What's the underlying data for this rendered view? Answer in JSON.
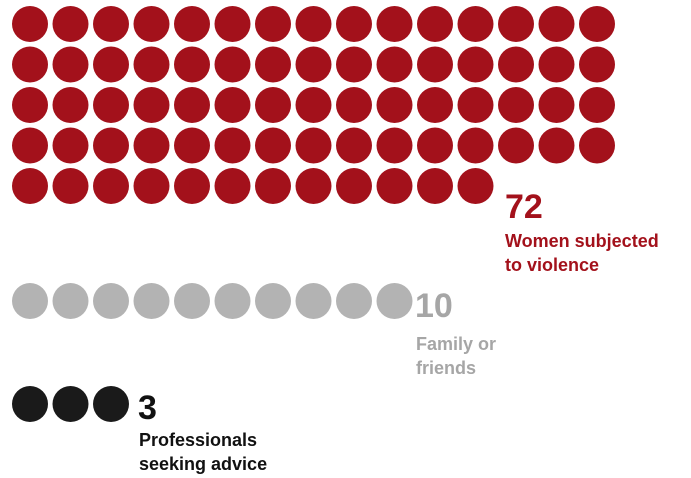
{
  "chart_data": {
    "type": "pictogram",
    "series": [
      {
        "value": 72,
        "value_label": "72",
        "label_lines": [
          "Women subjected",
          "to violence"
        ],
        "color": "#a3111b",
        "per_row": 15
      },
      {
        "value": 10,
        "value_label": "10",
        "label_lines": [
          "Family or",
          "friends"
        ],
        "color": "#b3b3b3",
        "per_row": 10
      },
      {
        "value": 3,
        "value_label": "3",
        "label_lines": [
          "Professionals",
          "seeking advice"
        ],
        "color": "#1a1a1a",
        "per_row": 3
      }
    ]
  }
}
